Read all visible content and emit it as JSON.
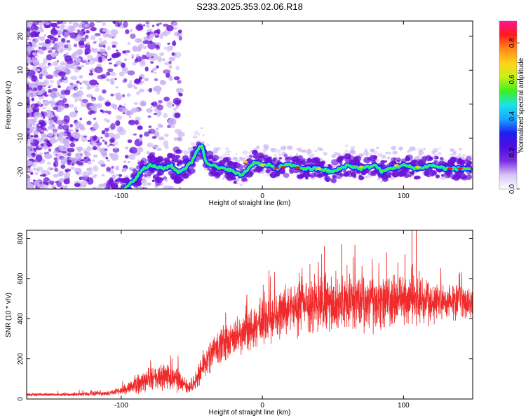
{
  "title": "S233.2025.353.02.06.R18",
  "colors": {
    "snr_line": "#ef2b2b",
    "track_cyan": "#19e3ea",
    "track_green": "#3cf01e",
    "track_red": "#e81b1b",
    "scatter_purple": "#6a11d8",
    "scatter_light": "#cbb4f4"
  },
  "chart_data": [
    {
      "type": "heatmap",
      "name": "spectrogram",
      "xlabel": "Height of straight line (km)",
      "ylabel": "Frequency (Hz)",
      "xlim": [
        -167,
        149
      ],
      "ylim": [
        -25,
        24.5
      ],
      "x_ticks": [
        -100,
        0,
        100
      ],
      "y_ticks": [
        -20,
        -10,
        0,
        10,
        20
      ],
      "grid": false,
      "colorbar": {
        "label": "Normalized spectral amplitude",
        "range": [
          0,
          0.92
        ],
        "ticks": [
          0.0,
          0.2,
          0.4,
          0.6,
          0.8
        ],
        "colormap": [
          "#ffffff",
          "#d7c4f6",
          "#7a2ee0",
          "#4f0fe0",
          "#1f1fef",
          "#1aa7ff",
          "#19e3ea",
          "#3cf01e",
          "#c8f01a",
          "#ffd21a",
          "#ff8a1a",
          "#ff1a1a",
          "#ff1493"
        ]
      },
      "track": {
        "x": [
          -98,
          -90,
          -85,
          -80,
          -75,
          -70,
          -65,
          -60,
          -55,
          -50,
          -47,
          -43,
          -40,
          -35,
          -30,
          -25,
          -20,
          -15,
          -10,
          -8,
          -5,
          0,
          5,
          10,
          15,
          20,
          30,
          40,
          50,
          60,
          70,
          80,
          85,
          90,
          100,
          110,
          120,
          130,
          140,
          148
        ],
        "y": [
          -25,
          -22,
          -19,
          -18,
          -18.5,
          -19,
          -18,
          -20,
          -19,
          -17,
          -14,
          -12,
          -17,
          -18,
          -19,
          -19,
          -20,
          -21,
          -19,
          -18,
          -17,
          -18,
          -18,
          -19,
          -18,
          -18,
          -19,
          -19,
          -20,
          -18,
          -19,
          -18,
          -20,
          -19,
          -18,
          -19,
          -18,
          -19,
          -19,
          -19
        ]
      }
    },
    {
      "type": "line",
      "name": "snr",
      "xlabel": "Height of straight line (km)",
      "ylabel": "SNR (10 * v/v)",
      "xlim": [
        -167,
        149
      ],
      "ylim": [
        0,
        840
      ],
      "x_ticks": [
        -100,
        0,
        100
      ],
      "y_ticks": [
        0,
        200,
        400,
        600,
        800
      ],
      "grid": false,
      "envelope": {
        "x": [
          -167,
          -150,
          -130,
          -110,
          -100,
          -90,
          -80,
          -70,
          -60,
          -55,
          -50,
          -45,
          -40,
          -35,
          -30,
          -20,
          -10,
          0,
          10,
          20,
          30,
          40,
          50,
          60,
          70,
          80,
          90,
          100,
          110,
          120,
          130,
          140,
          149
        ],
        "mean": [
          22,
          22,
          24,
          28,
          40,
          70,
          100,
          110,
          100,
          70,
          50,
          120,
          190,
          230,
          260,
          310,
          350,
          380,
          420,
          450,
          460,
          475,
          470,
          480,
          485,
          470,
          490,
          495,
          480,
          490,
          485,
          480,
          470
        ],
        "spread": [
          8,
          8,
          10,
          12,
          20,
          40,
          60,
          70,
          60,
          40,
          25,
          60,
          80,
          80,
          90,
          100,
          100,
          110,
          120,
          130,
          140,
          140,
          140,
          140,
          140,
          130,
          130,
          140,
          120,
          110,
          90,
          80,
          70
        ]
      },
      "spikes": [
        {
          "x": 106,
          "y": 840
        },
        {
          "x": 109,
          "y": 840
        },
        {
          "x": 101,
          "y": 720
        },
        {
          "x": 88,
          "y": 730
        },
        {
          "x": 56,
          "y": 770
        },
        {
          "x": 44,
          "y": 760
        },
        {
          "x": -26,
          "y": 430
        },
        {
          "x": -11,
          "y": 520
        }
      ]
    }
  ]
}
